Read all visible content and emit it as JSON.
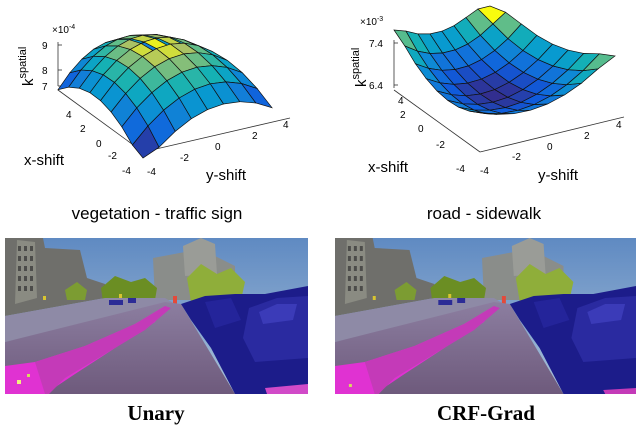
{
  "surface_plots": [
    {
      "caption": "vegetation - traffic sign",
      "zlabel": "k",
      "zlabel_sup": "spatial",
      "xlabel": "x-shift",
      "ylabel": "y-shift",
      "exponent": "×10",
      "exponent_sup": "-4",
      "z_ticks": [
        "9",
        "8",
        "7"
      ],
      "x_ticks": [
        "4",
        "2",
        "0",
        "-2",
        "-4"
      ],
      "y_ticks": [
        "-4",
        "-2",
        "0",
        "2",
        "4"
      ]
    },
    {
      "caption": "road - sidewalk",
      "zlabel": "k",
      "zlabel_sup": "spatial",
      "xlabel": "x-shift",
      "ylabel": "y-shift",
      "exponent": "×10",
      "exponent_sup": "-3",
      "z_ticks": [
        "7.4",
        "6.4"
      ],
      "x_ticks": [
        "4",
        "2",
        "0",
        "-2",
        "-4"
      ],
      "y_ticks": [
        "-4",
        "-2",
        "0",
        "2",
        "4"
      ]
    }
  ],
  "segmentation_panels": [
    {
      "caption": "Unary"
    },
    {
      "caption": "CRF-Grad"
    }
  ],
  "colors": {
    "sky": "#a9b9c6",
    "building": "#6f6f6b",
    "vegetation": "#6b8e23",
    "road": "#7b5f86",
    "sidewalk": "#e032d2",
    "car": "#1c1c8a",
    "sign": "#d8c530"
  }
}
